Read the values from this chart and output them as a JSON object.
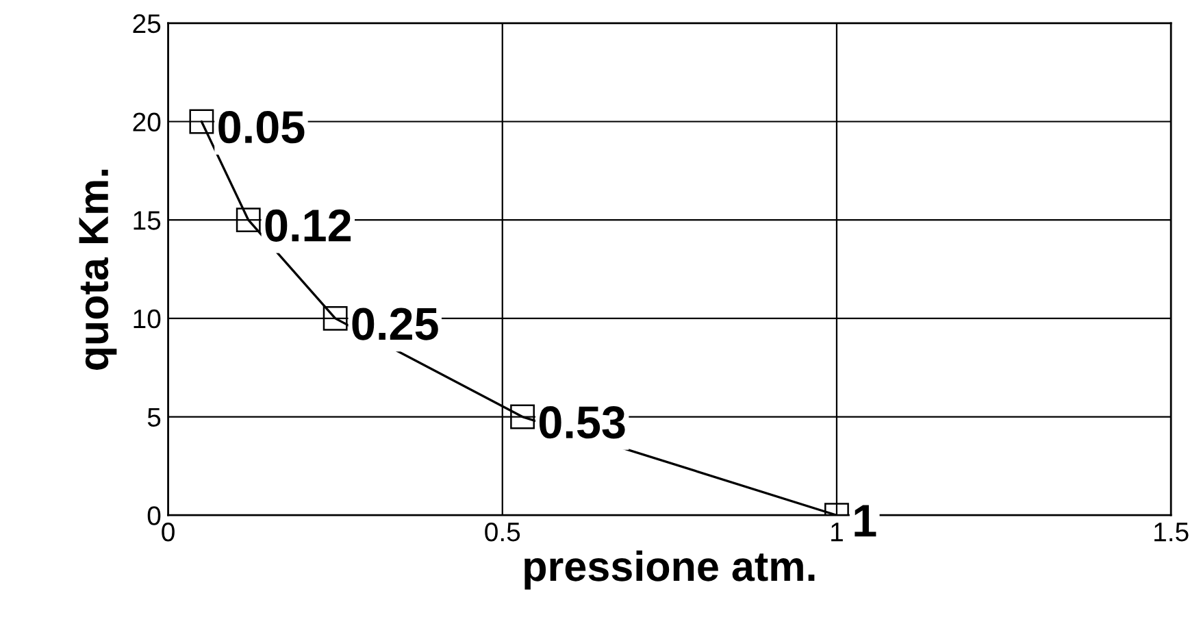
{
  "chart_data": {
    "type": "line",
    "xlabel": "pressione atm.",
    "ylabel": "quota Km.",
    "x": [
      0.05,
      0.12,
      0.25,
      0.53,
      1
    ],
    "series": [
      {
        "color": "#000000",
        "values": [
          20,
          15,
          10,
          5,
          0
        ]
      }
    ],
    "annotations": [
      {
        "text": "0.05",
        "x": 0.05,
        "y": 20
      },
      {
        "text": "0.12",
        "x": 0.12,
        "y": 15
      },
      {
        "text": "0.25",
        "x": 0.25,
        "y": 10
      },
      {
        "text": "0.53",
        "x": 0.53,
        "y": 5
      },
      {
        "text": "1",
        "x": 1,
        "y": 0
      }
    ],
    "xlim": [
      0,
      1.5
    ],
    "xticks": [
      0,
      0.5,
      1,
      1.5
    ],
    "ylim": [
      0,
      25
    ],
    "yticks": [
      0,
      5,
      10,
      15,
      20,
      25
    ],
    "grid": true,
    "marker": "square",
    "line_style": "solid"
  }
}
